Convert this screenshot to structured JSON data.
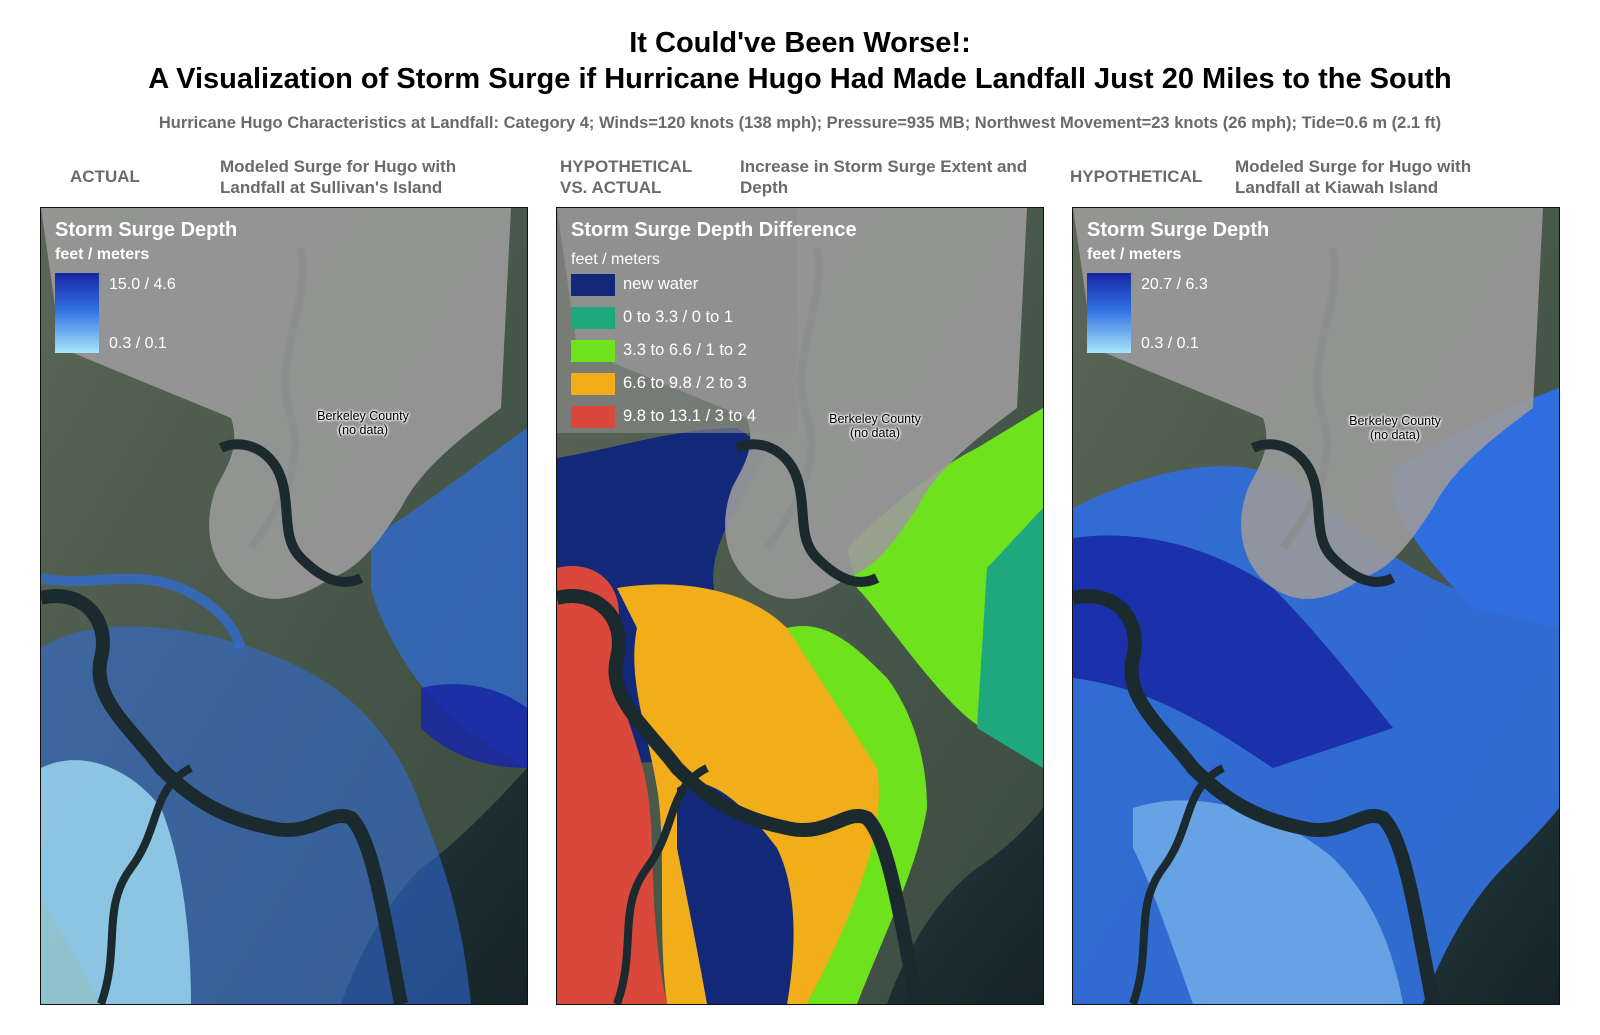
{
  "title_line1": "It Could've Been Worse!:",
  "title_line2": "A Visualization of Storm Surge if Hurricane Hugo Had Made Landfall Just 20 Miles to the South",
  "subtitle": "Hurricane Hugo Characteristics at Landfall:  Category 4; Winds=120 knots (138 mph); Pressure=935 MB; Northwest Movement=23 knots (26 mph); Tide=0.6 m (2.1 ft)",
  "county_label": "Berkeley County",
  "county_note": "(no data)",
  "panels": {
    "actual": {
      "tag": "ACTUAL",
      "description": "Modeled Surge for Hugo with Landfall at Sullivan's Island",
      "legend_title": "Storm Surge Depth",
      "legend_units": "feet / meters",
      "legend_max": "15.0 / 4.6",
      "legend_min": "0.3 / 0.1"
    },
    "difference": {
      "tag_line1": "HYPOTHETICAL",
      "tag_line2": "VS. ACTUAL",
      "description": "Increase in Storm Surge Extent and Depth",
      "legend_title": "Storm Surge Depth Difference",
      "legend_units": "feet / meters",
      "classes": [
        {
          "label": "new water",
          "color": "#12297a"
        },
        {
          "label": "0 to 3.3 / 0 to 1",
          "color": "#1fa77d"
        },
        {
          "label": "3.3 to 6.6 / 1 to 2",
          "color": "#6fe21e"
        },
        {
          "label": "6.6 to 9.8 / 2 to 3",
          "color": "#f2ad1b"
        },
        {
          "label": "9.8 to 13.1 / 3 to 4",
          "color": "#d9483a"
        }
      ]
    },
    "hypothetical": {
      "tag": "HYPOTHETICAL",
      "description": "Modeled Surge for Hugo with Landfall at Kiawah Island",
      "legend_title": "Storm Surge Depth",
      "legend_units": "feet / meters",
      "legend_max": "20.7 / 6.3",
      "legend_min": "0.3 / 0.1"
    }
  },
  "colors": {
    "land": "#4a5a48",
    "water": "#1b2a2e",
    "county_mask": "#9a9a9a",
    "surge_dark": "#1826a4",
    "surge_mid": "#2f6ee0",
    "surge_light": "#a8e6fb"
  }
}
